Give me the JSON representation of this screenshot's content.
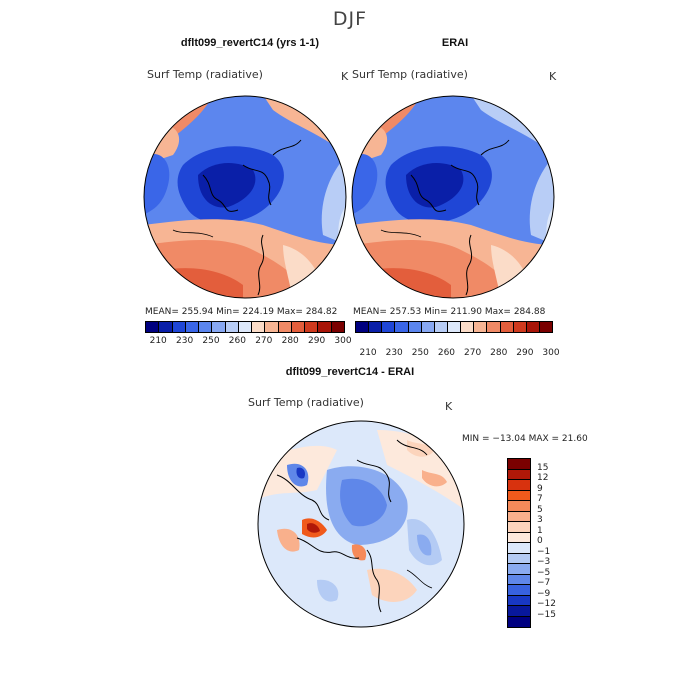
{
  "header": {
    "season": "DJF"
  },
  "panels": [
    {
      "title": "dflt099_revertC14 (yrs 1-1)",
      "variable": "Surf Temp (radiative)",
      "units": "K",
      "stats": {
        "mean": "255.94",
        "min": "224.19",
        "max": "284.82",
        "text": "MEAN= 255.94   Min= 224.19   Max= 284.82"
      }
    },
    {
      "title": "ERAI",
      "variable": "Surf Temp (radiative)",
      "units": "K",
      "stats": {
        "mean": "257.53",
        "min": "211.90",
        "max": "284.88",
        "text": "MEAN= 257.53   Min= 211.90   Max= 284.88"
      }
    }
  ],
  "diff_panel": {
    "title": "dflt099_revertC14 - ERAI",
    "variable": "Surf Temp (radiative)",
    "units": "K",
    "stats_text": "MIN = −13.04 MAX =   21.60"
  },
  "colorbar_abs": {
    "tick_labels": [
      "210",
      "230",
      "250",
      "260",
      "270",
      "280",
      "290",
      "300"
    ],
    "colors": [
      "#000080",
      "#0a1fa8",
      "#1f46d6",
      "#3a66e8",
      "#5c86ee",
      "#88a8f2",
      "#b8cdf6",
      "#dde8fa",
      "#fbdcc8",
      "#f7b594",
      "#f08a66",
      "#e35e3c",
      "#cf3a1e",
      "#a81508",
      "#7a0000"
    ]
  },
  "colorbar_diff": {
    "tick_labels": [
      "15",
      "12",
      "9",
      "7",
      "5",
      "3",
      "1",
      "0",
      "−1",
      "−3",
      "−5",
      "−7",
      "−9",
      "−12",
      "−15"
    ],
    "colors": [
      "#7a0000",
      "#b01808",
      "#d8320e",
      "#f05a1c",
      "#f68a5a",
      "#f9b08c",
      "#fcd4bc",
      "#fde9dc",
      "#dce8fa",
      "#b4cbf4",
      "#8aabf0",
      "#5f87e9",
      "#3862df",
      "#1838c4",
      "#08189c",
      "#000080"
    ]
  }
}
